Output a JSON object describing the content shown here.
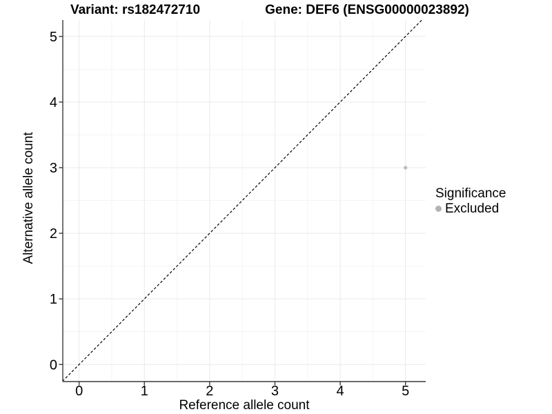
{
  "chart_data": {
    "type": "scatter",
    "title_left": "Variant: rs182472710",
    "title_right": "Gene: DEF6 (ENSG00000023892)",
    "xlabel": "Reference allele count",
    "ylabel": "Alternative allele count",
    "x_ticks": [
      0,
      1,
      2,
      3,
      4,
      5
    ],
    "y_ticks": [
      0,
      1,
      2,
      3,
      4,
      5
    ],
    "xlim": [
      -0.25,
      5.31
    ],
    "ylim": [
      -0.26,
      5.25
    ],
    "minor_grid_step": 0.5,
    "grid": "major+minor",
    "points": [
      {
        "x": 5,
        "y": 3,
        "series": "Excluded"
      }
    ],
    "reference_line": {
      "kind": "identity y=x",
      "style": "dashed",
      "color": "#000000"
    },
    "legend": {
      "title": "Significance",
      "position": "right",
      "items": [
        {
          "label": "Excluded",
          "color": "#b3b3b3",
          "marker": "circle"
        }
      ]
    },
    "colors": {
      "background": "#ffffff",
      "grid_major": "#e9e9e9",
      "grid_minor": "#f4f4f4",
      "axis": "#383838",
      "point": "#bcbcbc",
      "text": "#000000"
    }
  }
}
